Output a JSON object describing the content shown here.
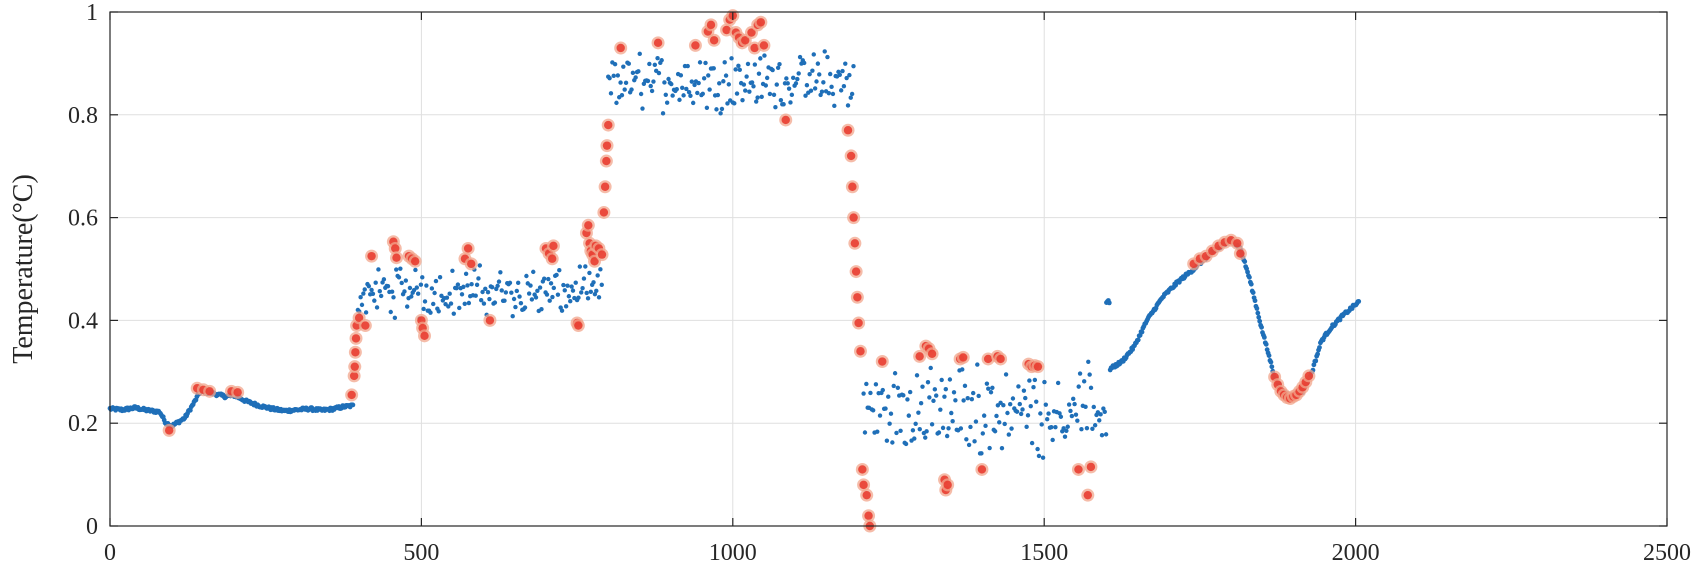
{
  "chart_data": {
    "type": "scatter",
    "title": "",
    "xlabel": "",
    "ylabel": "Temperature(°C)",
    "xlim": [
      0,
      2500
    ],
    "ylim": [
      0,
      1
    ],
    "grid": true,
    "x_ticks": [
      0,
      500,
      1000,
      1500,
      2000,
      2500
    ],
    "x_tick_labels": [
      "0",
      "500",
      "1000",
      "1500",
      "2000",
      "2500"
    ],
    "y_ticks": [
      0,
      0.2,
      0.4,
      0.6,
      0.8,
      1
    ],
    "y_tick_labels": [
      "0",
      "0.2",
      "0.4",
      "0.6",
      "0.8",
      "1"
    ],
    "series": [
      {
        "name": "Temperature",
        "color": "#1f6fb8",
        "segments": [
          {
            "x0": 0,
            "x1": 390,
            "kind": "dense",
            "points": [
              [
                0,
                0.228
              ],
              [
                20,
                0.226
              ],
              [
                40,
                0.23
              ],
              [
                60,
                0.225
              ],
              [
                80,
                0.222
              ],
              [
                90,
                0.2
              ],
              [
                100,
                0.195
              ],
              [
                120,
                0.21
              ],
              [
                135,
                0.24
              ],
              [
                145,
                0.262
              ],
              [
                165,
                0.258
              ],
              [
                185,
                0.252
              ],
              [
                200,
                0.254
              ],
              [
                220,
                0.242
              ],
              [
                240,
                0.234
              ],
              [
                260,
                0.228
              ],
              [
                280,
                0.224
              ],
              [
                300,
                0.226
              ],
              [
                320,
                0.228
              ],
              [
                340,
                0.225
              ],
              [
                360,
                0.228
              ],
              [
                375,
                0.232
              ],
              [
                390,
                0.234
              ]
            ]
          },
          {
            "x0": 398,
            "x1": 790,
            "kind": "noisy",
            "center": 0.455,
            "amp": 0.04
          },
          {
            "x0": 800,
            "x1": 1195,
            "kind": "noisy",
            "center": 0.865,
            "amp": 0.045
          },
          {
            "x0": 1210,
            "x1": 1600,
            "kind": "noisy",
            "center": 0.225,
            "amp": 0.07
          },
          {
            "x0": 1600,
            "x1": 2005,
            "kind": "dense",
            "points": [
              [
                1605,
                0.305
              ],
              [
                1625,
                0.32
              ],
              [
                1645,
                0.35
              ],
              [
                1665,
                0.4
              ],
              [
                1690,
                0.445
              ],
              [
                1715,
                0.475
              ],
              [
                1740,
                0.5
              ],
              [
                1760,
                0.522
              ],
              [
                1780,
                0.54
              ],
              [
                1800,
                0.556
              ],
              [
                1815,
                0.54
              ],
              [
                1830,
                0.48
              ],
              [
                1850,
                0.38
              ],
              [
                1870,
                0.29
              ],
              [
                1885,
                0.258
              ],
              [
                1900,
                0.252
              ],
              [
                1915,
                0.262
              ],
              [
                1930,
                0.3
              ],
              [
                1945,
                0.36
              ],
              [
                1960,
                0.385
              ],
              [
                1980,
                0.41
              ],
              [
                2005,
                0.436
              ]
            ]
          }
        ]
      },
      {
        "name": "Anomalies",
        "color": "#e8362a",
        "halo_color": "#f2a58c",
        "points": [
          [
            95,
            0.186
          ],
          [
            140,
            0.268
          ],
          [
            150,
            0.265
          ],
          [
            160,
            0.262
          ],
          [
            195,
            0.262
          ],
          [
            205,
            0.26
          ],
          [
            388,
            0.255
          ],
          [
            392,
            0.292
          ],
          [
            393,
            0.31
          ],
          [
            394,
            0.338
          ],
          [
            395,
            0.365
          ],
          [
            396,
            0.39
          ],
          [
            400,
            0.405
          ],
          [
            410,
            0.39
          ],
          [
            420,
            0.525
          ],
          [
            455,
            0.553
          ],
          [
            458,
            0.54
          ],
          [
            460,
            0.522
          ],
          [
            480,
            0.525
          ],
          [
            485,
            0.52
          ],
          [
            490,
            0.515
          ],
          [
            500,
            0.4
          ],
          [
            502,
            0.385
          ],
          [
            505,
            0.37
          ],
          [
            570,
            0.52
          ],
          [
            575,
            0.54
          ],
          [
            580,
            0.51
          ],
          [
            610,
            0.4
          ],
          [
            700,
            0.54
          ],
          [
            705,
            0.53
          ],
          [
            710,
            0.52
          ],
          [
            712,
            0.545
          ],
          [
            750,
            0.395
          ],
          [
            752,
            0.39
          ],
          [
            765,
            0.57
          ],
          [
            768,
            0.585
          ],
          [
            770,
            0.55
          ],
          [
            772,
            0.535
          ],
          [
            775,
            0.528
          ],
          [
            778,
            0.515
          ],
          [
            780,
            0.545
          ],
          [
            785,
            0.54
          ],
          [
            790,
            0.528
          ],
          [
            793,
            0.61
          ],
          [
            795,
            0.66
          ],
          [
            797,
            0.71
          ],
          [
            798,
            0.74
          ],
          [
            800,
            0.78
          ],
          [
            820,
            0.93
          ],
          [
            880,
            0.94
          ],
          [
            940,
            0.935
          ],
          [
            960,
            0.962
          ],
          [
            965,
            0.975
          ],
          [
            970,
            0.945
          ],
          [
            990,
            0.965
          ],
          [
            995,
            0.985
          ],
          [
            1000,
            0.993
          ],
          [
            1005,
            0.96
          ],
          [
            1010,
            0.95
          ],
          [
            1015,
            0.94
          ],
          [
            1020,
            0.945
          ],
          [
            1030,
            0.96
          ],
          [
            1035,
            0.93
          ],
          [
            1040,
            0.975
          ],
          [
            1045,
            0.98
          ],
          [
            1050,
            0.935
          ],
          [
            1085,
            0.79
          ],
          [
            1185,
            0.77
          ],
          [
            1190,
            0.72
          ],
          [
            1192,
            0.66
          ],
          [
            1194,
            0.6
          ],
          [
            1196,
            0.55
          ],
          [
            1198,
            0.495
          ],
          [
            1200,
            0.445
          ],
          [
            1202,
            0.395
          ],
          [
            1205,
            0.34
          ],
          [
            1208,
            0.11
          ],
          [
            1210,
            0.08
          ],
          [
            1215,
            0.06
          ],
          [
            1218,
            0.02
          ],
          [
            1220,
            0.0
          ],
          [
            1240,
            0.32
          ],
          [
            1300,
            0.33
          ],
          [
            1310,
            0.35
          ],
          [
            1315,
            0.345
          ],
          [
            1320,
            0.335
          ],
          [
            1340,
            0.09
          ],
          [
            1342,
            0.07
          ],
          [
            1345,
            0.08
          ],
          [
            1365,
            0.325
          ],
          [
            1370,
            0.328
          ],
          [
            1400,
            0.11
          ],
          [
            1410,
            0.325
          ],
          [
            1425,
            0.33
          ],
          [
            1430,
            0.325
          ],
          [
            1475,
            0.315
          ],
          [
            1480,
            0.31
          ],
          [
            1485,
            0.312
          ],
          [
            1490,
            0.31
          ],
          [
            1555,
            0.11
          ],
          [
            1570,
            0.06
          ],
          [
            1575,
            0.115
          ],
          [
            1740,
            0.51
          ],
          [
            1750,
            0.52
          ],
          [
            1760,
            0.525
          ],
          [
            1770,
            0.535
          ],
          [
            1780,
            0.545
          ],
          [
            1790,
            0.552
          ],
          [
            1800,
            0.556
          ],
          [
            1810,
            0.55
          ],
          [
            1815,
            0.53
          ],
          [
            1870,
            0.29
          ],
          [
            1875,
            0.275
          ],
          [
            1880,
            0.262
          ],
          [
            1885,
            0.255
          ],
          [
            1890,
            0.25
          ],
          [
            1895,
            0.248
          ],
          [
            1900,
            0.252
          ],
          [
            1905,
            0.255
          ],
          [
            1910,
            0.262
          ],
          [
            1915,
            0.27
          ],
          [
            1920,
            0.28
          ],
          [
            1925,
            0.292
          ]
        ]
      }
    ]
  }
}
